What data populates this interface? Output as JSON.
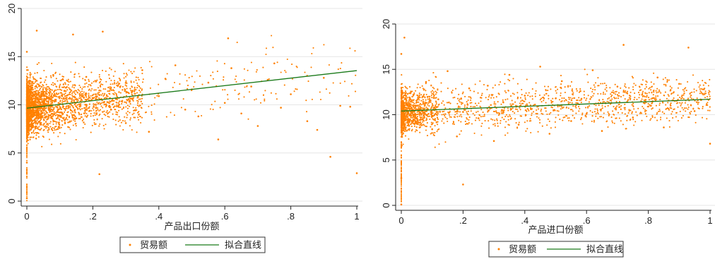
{
  "chart_data": [
    {
      "type": "scatter",
      "xlabel": "产品出口份额",
      "ylabel": "",
      "xlim": [
        0,
        1
      ],
      "ylim": [
        0,
        20
      ],
      "xticks": [
        0,
        0.2,
        0.4,
        0.6,
        0.8,
        1
      ],
      "xtick_labels": [
        "0",
        ".2",
        ".4",
        ".6",
        ".8",
        "1"
      ],
      "yticks": [
        0,
        5,
        10,
        15,
        20
      ],
      "ytick_labels": [
        "0",
        "5",
        "10",
        "15",
        "20"
      ],
      "grid": "horizontal",
      "legend": {
        "placement": "bottom-center"
      },
      "series": [
        {
          "name": "贸易额",
          "kind": "scatter",
          "color": "#ff8000",
          "description_density": "dense near x=0 (y 6-16), sparse toward x=1",
          "points": [
            [
              0.01,
              11.2
            ],
            [
              0.02,
              9.8
            ],
            [
              0.03,
              12.5
            ],
            [
              0.05,
              10.4
            ],
            [
              0.08,
              13.1
            ],
            [
              0.1,
              9.2
            ],
            [
              0.12,
              11.8
            ],
            [
              0.15,
              8.6
            ],
            [
              0.18,
              12.9
            ],
            [
              0.2,
              10.7
            ],
            [
              0.23,
              17.6
            ],
            [
              0.22,
              2.8
            ],
            [
              0.25,
              9.9
            ],
            [
              0.28,
              12.2
            ],
            [
              0.3,
              8.1
            ],
            [
              0.32,
              11.4
            ],
            [
              0.35,
              13.6
            ],
            [
              0.37,
              7.2
            ],
            [
              0.4,
              10.9
            ],
            [
              0.42,
              12.7
            ],
            [
              0.45,
              14.1
            ],
            [
              0.48,
              9.5
            ],
            [
              0.5,
              11.6
            ],
            [
              0.52,
              8.8
            ],
            [
              0.55,
              12.3
            ],
            [
              0.58,
              6.4
            ],
            [
              0.6,
              10.2
            ],
            [
              0.61,
              16.9
            ],
            [
              0.62,
              13.8
            ],
            [
              0.65,
              9.1
            ],
            [
              0.68,
              11.9
            ],
            [
              0.7,
              7.8
            ],
            [
              0.73,
              12.6
            ],
            [
              0.75,
              14.3
            ],
            [
              0.77,
              9.7
            ],
            [
              0.8,
              11.1
            ],
            [
              0.85,
              8.3
            ],
            [
              0.88,
              7.4
            ],
            [
              0.9,
              12.8
            ],
            [
              0.92,
              4.6
            ],
            [
              0.95,
              9.9
            ],
            [
              0.98,
              9.8
            ],
            [
              1.0,
              2.9
            ],
            [
              0.0,
              0.3
            ],
            [
              0.0,
              4.0
            ],
            [
              0.0,
              15.5
            ],
            [
              0.03,
              17.7
            ],
            [
              0.14,
              17.3
            ]
          ]
        },
        {
          "name": "拟合直线",
          "kind": "line",
          "color": "#1a7a1a",
          "points": [
            [
              0,
              9.65
            ],
            [
              1,
              13.55
            ]
          ]
        }
      ]
    },
    {
      "type": "scatter",
      "xlabel": "产品进口份额",
      "ylabel": "",
      "xlim": [
        0,
        1
      ],
      "ylim": [
        0,
        20
      ],
      "xticks": [
        0,
        0.2,
        0.4,
        0.6,
        0.8,
        1
      ],
      "xtick_labels": [
        "0",
        ".2",
        ".4",
        ".6",
        ".8",
        "1"
      ],
      "yticks": [
        0,
        5,
        10,
        15,
        20
      ],
      "ytick_labels": [
        "0",
        "5",
        "10",
        "15",
        "20"
      ],
      "grid": "horizontal",
      "legend": {
        "placement": "bottom-center"
      },
      "series": [
        {
          "name": "贸易额",
          "kind": "scatter",
          "color": "#ff8000",
          "description_density": "dense near x=0 (y 6-16), evenly spread across x (y 6-15)",
          "points": [
            [
              0.01,
              10.8
            ],
            [
              0.03,
              12.4
            ],
            [
              0.05,
              9.1
            ],
            [
              0.08,
              13.6
            ],
            [
              0.1,
              8.4
            ],
            [
              0.12,
              11.7
            ],
            [
              0.15,
              14.8
            ],
            [
              0.18,
              7.6
            ],
            [
              0.2,
              10.3
            ],
            [
              0.22,
              12.9
            ],
            [
              0.25,
              9.6
            ],
            [
              0.28,
              13.2
            ],
            [
              0.3,
              7.1
            ],
            [
              0.33,
              11.4
            ],
            [
              0.35,
              14.4
            ],
            [
              0.38,
              8.9
            ],
            [
              0.4,
              12.1
            ],
            [
              0.42,
              10.6
            ],
            [
              0.45,
              15.3
            ],
            [
              0.48,
              7.9
            ],
            [
              0.5,
              11.8
            ],
            [
              0.52,
              13.7
            ],
            [
              0.55,
              9.3
            ],
            [
              0.58,
              12.6
            ],
            [
              0.6,
              10.1
            ],
            [
              0.62,
              14.9
            ],
            [
              0.65,
              8.2
            ],
            [
              0.68,
              11.3
            ],
            [
              0.7,
              13.1
            ],
            [
              0.72,
              17.7
            ],
            [
              0.75,
              9.7
            ],
            [
              0.78,
              12.2
            ],
            [
              0.8,
              10.9
            ],
            [
              0.83,
              14.1
            ],
            [
              0.85,
              8.6
            ],
            [
              0.88,
              11.6
            ],
            [
              0.9,
              13.4
            ],
            [
              0.93,
              17.4
            ],
            [
              0.95,
              10.4
            ],
            [
              0.98,
              12.8
            ],
            [
              1.0,
              6.8
            ],
            [
              0.0,
              0.1
            ],
            [
              0.0,
              3.0
            ],
            [
              0.01,
              18.5
            ],
            [
              0.0,
              16.7
            ],
            [
              0.2,
              2.3
            ]
          ]
        },
        {
          "name": "拟合直线",
          "kind": "line",
          "color": "#1a7a1a",
          "points": [
            [
              0,
              10.4
            ],
            [
              1,
              11.7
            ]
          ]
        }
      ]
    }
  ]
}
